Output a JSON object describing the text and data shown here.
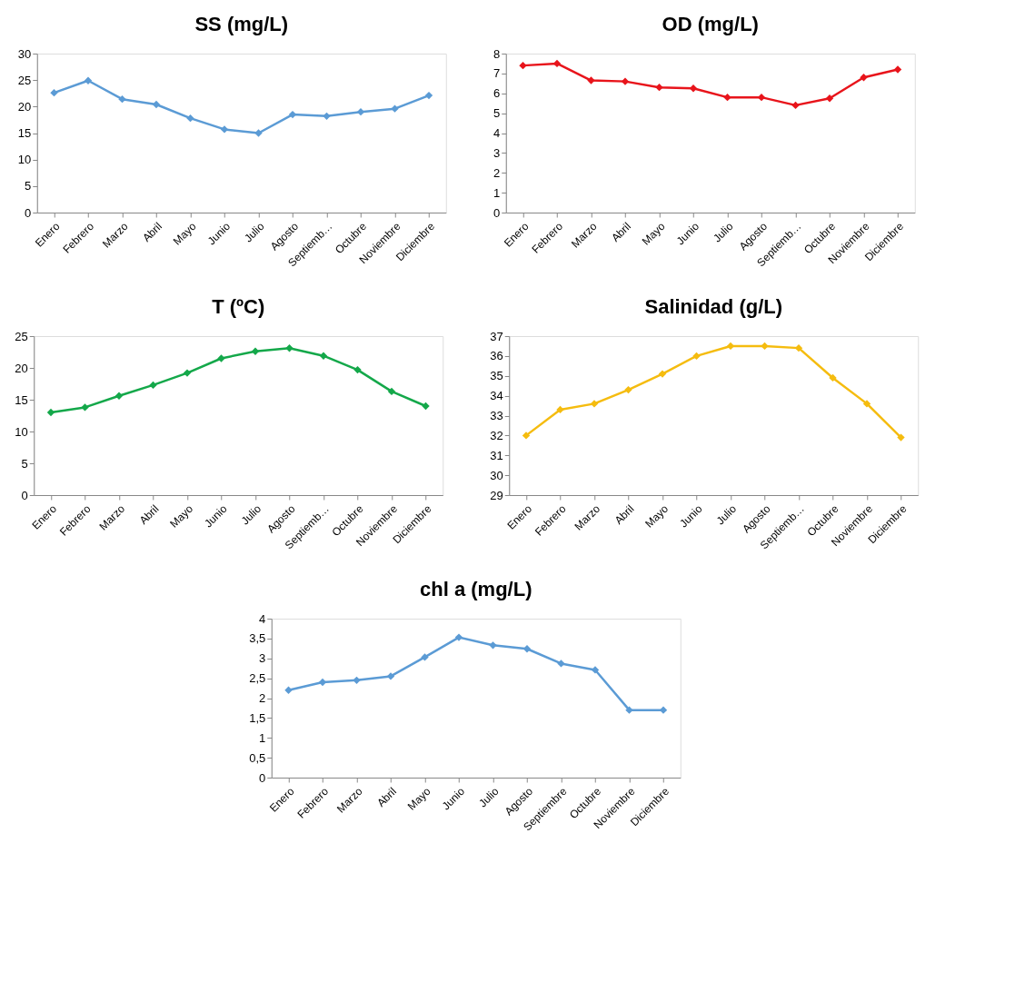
{
  "chart_data": [
    {
      "type": "line",
      "title": "SS (mg/L)",
      "categories": [
        "Enero",
        "Febrero",
        "Marzo",
        "Abril",
        "Mayo",
        "Junio",
        "Julio",
        "Agosto",
        "Septiemb…",
        "Octubre",
        "Noviembre",
        "Diciembre"
      ],
      "series": [
        {
          "color": "#5b9bd5",
          "values": [
            22.6,
            24.9,
            21.4,
            20.4,
            17.8,
            15.7,
            15.0,
            18.5,
            18.2,
            19.0,
            19.6,
            22.1
          ]
        }
      ],
      "ylim": [
        0,
        30
      ],
      "yticks": [
        0,
        5,
        10,
        15,
        20,
        25,
        30
      ],
      "marker": "diamond",
      "grid": false
    },
    {
      "type": "line",
      "title": "OD (mg/L)",
      "categories": [
        "Enero",
        "Febrero",
        "Marzo",
        "Abril",
        "Mayo",
        "Junio",
        "Julio",
        "Agosto",
        "Septiemb…",
        "Octubre",
        "Noviembre",
        "Diciembre"
      ],
      "series": [
        {
          "color": "#e8141b",
          "values": [
            7.4,
            7.5,
            6.65,
            6.6,
            6.3,
            6.25,
            5.8,
            5.8,
            5.4,
            5.75,
            6.8,
            7.2
          ]
        }
      ],
      "ylim": [
        0,
        8
      ],
      "yticks": [
        0,
        1,
        2,
        3,
        4,
        5,
        6,
        7,
        8
      ],
      "marker": "diamond",
      "grid": false
    },
    {
      "type": "line",
      "title": "T (ºC)",
      "categories": [
        "Enero",
        "Febrero",
        "Marzo",
        "Abril",
        "Mayo",
        "Junio",
        "Julio",
        "Agosto",
        "Septiemb…",
        "Octubre",
        "Noviembre",
        "Diciembre"
      ],
      "series": [
        {
          "color": "#14a84a",
          "values": [
            13.0,
            13.8,
            15.6,
            17.3,
            19.2,
            21.5,
            22.6,
            23.1,
            21.9,
            19.7,
            16.3,
            14.0
          ]
        }
      ],
      "ylim": [
        0,
        25
      ],
      "yticks": [
        0,
        5,
        10,
        15,
        20,
        25
      ],
      "marker": "diamond",
      "grid": false
    },
    {
      "type": "line",
      "title": "Salinidad (g/L)",
      "categories": [
        "Enero",
        "Febrero",
        "Marzo",
        "Abril",
        "Mayo",
        "Junio",
        "Julio",
        "Agosto",
        "Septiemb…",
        "Octubre",
        "Noviembre",
        "Diciembre"
      ],
      "series": [
        {
          "color": "#f5bc0f",
          "values": [
            32.0,
            33.3,
            33.6,
            34.3,
            35.1,
            36.0,
            36.5,
            36.5,
            36.4,
            34.9,
            33.6,
            31.9
          ]
        }
      ],
      "ylim": [
        29,
        37
      ],
      "yticks": [
        29,
        30,
        31,
        32,
        33,
        34,
        35,
        36,
        37
      ],
      "marker": "diamond",
      "grid": false
    },
    {
      "type": "line",
      "title": "chl a (mg/L)",
      "categories": [
        "Enero",
        "Febrero",
        "Marzo",
        "Abril",
        "Mayo",
        "Junio",
        "Julio",
        "Agosto",
        "Septiembre",
        "Octubre",
        "Noviembre",
        "Diciembre"
      ],
      "series": [
        {
          "color": "#5b9bd5",
          "values": [
            2.2,
            2.4,
            2.45,
            2.55,
            3.03,
            3.53,
            3.33,
            3.24,
            2.87,
            2.71,
            1.7,
            1.7
          ]
        }
      ],
      "ylim": [
        0,
        4
      ],
      "yticks": [
        0,
        {
          "value": 0.5,
          "label": "0,5"
        },
        1,
        {
          "value": 1.5,
          "label": "1,5"
        },
        2,
        {
          "value": 2.5,
          "label": "2,5"
        },
        3,
        {
          "value": 3.5,
          "label": "3,5"
        },
        4
      ],
      "marker": "diamond",
      "grid": false
    }
  ]
}
